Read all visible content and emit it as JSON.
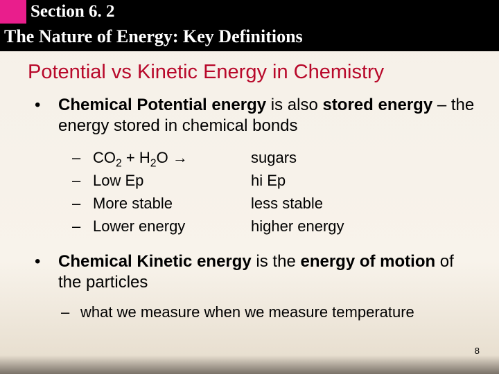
{
  "header": {
    "section_label": "Section 6. 2",
    "subtitle": "The Nature of Energy:  Key Definitions"
  },
  "title": "Potential vs Kinetic Energy in Chemistry",
  "bullet1": {
    "b1": "Chemical Potential energy",
    "t1": " is also ",
    "b2": "stored energy",
    "t2": " –  the energy stored in chemical bonds"
  },
  "comparison": {
    "rows": [
      {
        "left_pre": "CO",
        "left_sub1": "2",
        "left_mid": " + H",
        "left_sub2": "2",
        "left_post": "O ",
        "left_arrow": "→",
        "right": "sugars"
      },
      {
        "left": "Low Ep",
        "right": "hi Ep"
      },
      {
        "left": "More stable",
        "right": "less stable"
      },
      {
        "left": "Lower energy",
        "right": "higher energy"
      }
    ]
  },
  "bullet2": {
    "b1": "Chemical Kinetic energy",
    "t1": " is the ",
    "b2": "energy of motion",
    "t2": " of the particles"
  },
  "sub_bullet": "what we measure when we measure temperature",
  "page_number": "8",
  "colors": {
    "accent_pink": "#e91e8c",
    "title_red": "#b8082a",
    "header_bg": "#000000"
  }
}
